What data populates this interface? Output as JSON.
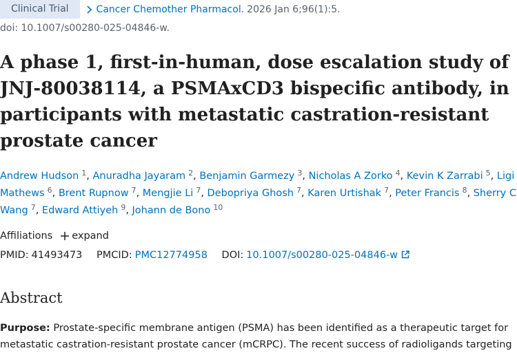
{
  "header": {
    "badge": "Clinical Trial",
    "journal": "Cancer Chemother Pharmacol.",
    "citation": "2026 Jan 6;96(1):5.",
    "doi_line": "doi: 10.1007/s00280-025-04846-w."
  },
  "title": "A phase 1, first-in-human, dose escalation study of JNJ-80038114, a PSMAxCD3 bispecific antibody, in participants with metastatic castration-resistant prostate cancer",
  "author_separator": ",",
  "authors": [
    {
      "name": "Andrew Hudson",
      "aff": "1"
    },
    {
      "name": "Anuradha Jayaram",
      "aff": "2"
    },
    {
      "name": "Benjamin Garmezy",
      "aff": "3"
    },
    {
      "name": "Nicholas A Zorko",
      "aff": "4"
    },
    {
      "name": "Kevin K Zarrabi",
      "aff": "5"
    },
    {
      "name": "Ligi Mathews",
      "aff": "6"
    },
    {
      "name": "Brent Rupnow",
      "aff": "7"
    },
    {
      "name": "Mengjie Li",
      "aff": "7"
    },
    {
      "name": "Debopriya Ghosh",
      "aff": "7"
    },
    {
      "name": "Karen Urtishak",
      "aff": "7"
    },
    {
      "name": "Peter Francis",
      "aff": "8"
    },
    {
      "name": "Sherry C Wang",
      "aff": "7"
    },
    {
      "name": "Edward Attiyeh",
      "aff": "9"
    },
    {
      "name": "Johann de Bono",
      "aff": "10"
    }
  ],
  "affiliations": {
    "label": "Affiliations",
    "expand": "expand"
  },
  "identifiers": {
    "pmid_label": "PMID:",
    "pmid": "41493473",
    "pmcid_label": "PMCID:",
    "pmcid": "PMC12774958",
    "doi_label": "DOI:",
    "doi": "10.1007/s00280-025-04846-w"
  },
  "abstract": {
    "heading": "Abstract",
    "purpose_label": "Purpose:",
    "purpose_text": "Prostate-specific membrane antigen (PSMA) has been identified as a therapeutic target for metastatic castration-resistant prostate cancer (mCRPC). The recent success of radioligands targeting"
  }
}
